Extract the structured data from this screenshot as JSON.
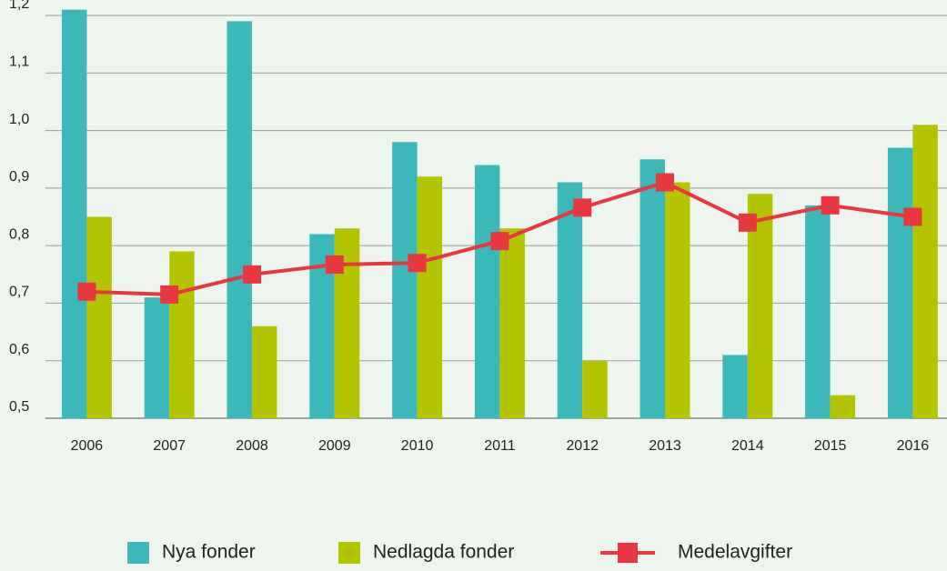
{
  "chart_data": {
    "type": "bar-line",
    "categories": [
      "2006",
      "2007",
      "2008",
      "2009",
      "2010",
      "2011",
      "2012",
      "2013",
      "2014",
      "2015",
      "2016"
    ],
    "series": [
      {
        "name": "Nya fonder",
        "type": "bar",
        "color": "#3bb8b9",
        "values": [
          1.21,
          0.71,
          1.19,
          0.82,
          0.98,
          0.94,
          0.91,
          0.95,
          0.61,
          0.87,
          0.97
        ]
      },
      {
        "name": "Nedlagda fonder",
        "type": "bar",
        "color": "#b2c500",
        "values": [
          0.85,
          0.79,
          0.66,
          0.83,
          0.92,
          0.83,
          0.6,
          0.91,
          0.89,
          0.54,
          1.01
        ]
      },
      {
        "name": "Medelavgifter",
        "type": "line",
        "color": "#e8373e",
        "values": [
          0.72,
          0.715,
          0.75,
          0.767,
          0.77,
          0.808,
          0.866,
          0.91,
          0.84,
          0.87,
          0.85
        ]
      }
    ],
    "ylim": [
      0.5,
      1.2
    ],
    "yticks": [
      {
        "value": 0.5,
        "label": "0,5"
      },
      {
        "value": 0.6,
        "label": "0,6"
      },
      {
        "value": 0.7,
        "label": "0,7"
      },
      {
        "value": 0.8,
        "label": "0,8"
      },
      {
        "value": 0.9,
        "label": "0,9"
      },
      {
        "value": 1.0,
        "label": "1,0"
      },
      {
        "value": 1.1,
        "label": "1,1"
      },
      {
        "value": 1.2,
        "label": "1,2"
      }
    ],
    "grid": true
  }
}
